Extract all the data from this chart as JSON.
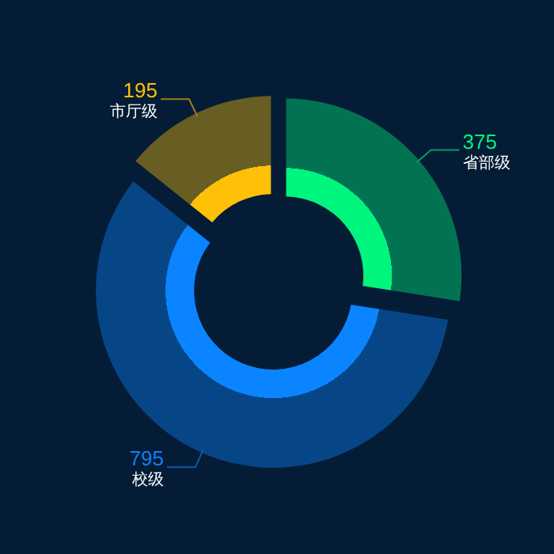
{
  "chart_data": {
    "type": "donut",
    "categories": [
      "省部级",
      "校级",
      "市厅级"
    ],
    "values": [
      375,
      795,
      195
    ],
    "colors": [
      "#00f57d",
      "#0a84ff",
      "#ffc107"
    ],
    "data_labels": true,
    "legend": false
  }
}
